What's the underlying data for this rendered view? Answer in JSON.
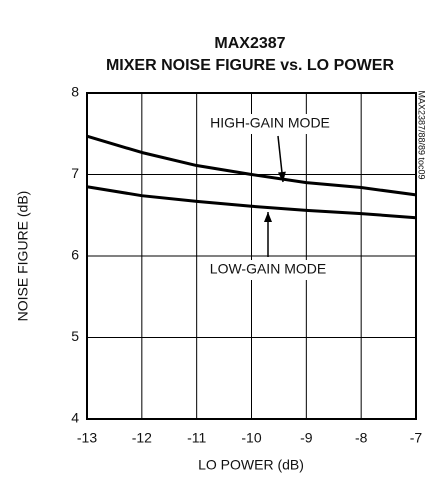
{
  "chart_data": {
    "type": "line",
    "title": "MAX2387",
    "subtitle": "MIXER NOISE FIGURE  vs. LO POWER",
    "note": "MAX2387/88/89 toc09",
    "x_label": "LO POWER (dB)",
    "y_label": "NOISE FIGURE (dB)",
    "x": [
      -13,
      -12,
      -11,
      -10,
      -9,
      -8,
      -7
    ],
    "series": [
      {
        "name": "HIGH-GAIN MODE",
        "color": "#000000",
        "values": [
          7.47,
          7.27,
          7.11,
          7.0,
          6.9,
          6.84,
          6.75
        ]
      },
      {
        "name": "LOW-GAIN MODE",
        "color": "#000000",
        "values": [
          6.85,
          6.74,
          6.67,
          6.61,
          6.56,
          6.52,
          6.47
        ]
      }
    ],
    "xlim": [
      -13,
      -7
    ],
    "xticks": [
      -13,
      -12,
      -11,
      -10,
      -9,
      -8,
      -7
    ],
    "ylim": [
      4,
      8
    ],
    "yticks": [
      4,
      5,
      6,
      7,
      8
    ],
    "grid": true
  }
}
